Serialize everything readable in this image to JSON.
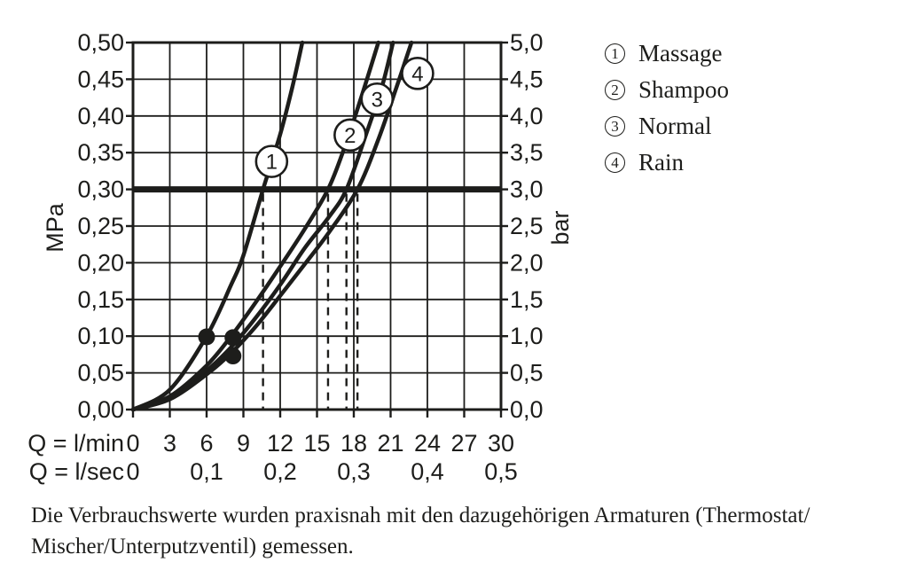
{
  "page": {
    "background": "#ffffff",
    "ink": "#1d1d1b"
  },
  "chart_data": {
    "type": "line",
    "title": "",
    "grid": true,
    "x_axis": {
      "unit_primary": "Q = l/min",
      "unit_secondary": "Q = l/sec",
      "range_lmin": [
        0,
        30
      ],
      "grid_step_lmin": 3,
      "ticks_lmin": [
        "0",
        "3",
        "6",
        "9",
        "12",
        "15",
        "18",
        "21",
        "24",
        "27",
        "30"
      ],
      "ticks_lsec": [
        {
          "q": 0,
          "label": "0"
        },
        {
          "q": 6,
          "label": "0,1"
        },
        {
          "q": 12,
          "label": "0,2"
        },
        {
          "q": 18,
          "label": "0,3"
        },
        {
          "q": 24,
          "label": "0,4"
        },
        {
          "q": 30,
          "label": "0,5"
        }
      ]
    },
    "y_axis_left": {
      "unit": "MPa",
      "range": [
        0,
        0.5
      ],
      "grid_step_mpa": 0.05,
      "ticks": [
        "0,50",
        "0,45",
        "0,40",
        "0,35",
        "0,30",
        "0,25",
        "0,20",
        "0,15",
        "0,10",
        "0,05",
        "0,00"
      ]
    },
    "y_axis_right": {
      "unit": "bar",
      "range": [
        0,
        5
      ],
      "ticks": [
        "5,0",
        "4,5",
        "4,0",
        "3,5",
        "3,0",
        "2,5",
        "2,0",
        "1,5",
        "1,0",
        "0,5",
        "0,0"
      ]
    },
    "reference_line": {
      "mpa": 0.3,
      "bar": 3.0
    },
    "series": [
      {
        "id": "1",
        "name": "Massage",
        "q_lmin_at_3bar": 10.6,
        "points_q_mpa": [
          [
            0,
            0
          ],
          [
            3,
            0.027
          ],
          [
            6,
            0.1
          ],
          [
            8,
            0.17
          ],
          [
            9,
            0.21
          ],
          [
            10.6,
            0.3
          ],
          [
            12,
            0.375
          ],
          [
            13,
            0.44
          ],
          [
            13.8,
            0.5
          ]
        ],
        "label_circle": {
          "q": 11.3,
          "mpa": 0.338
        }
      },
      {
        "id": "2",
        "name": "Shampoo",
        "q_lmin_at_3bar": 15.9,
        "points_q_mpa": [
          [
            0,
            0
          ],
          [
            3,
            0.018
          ],
          [
            6,
            0.06
          ],
          [
            8,
            0.1
          ],
          [
            10,
            0.146
          ],
          [
            12,
            0.195
          ],
          [
            14,
            0.246
          ],
          [
            15.9,
            0.3
          ],
          [
            17.2,
            0.355
          ],
          [
            18.6,
            0.425
          ],
          [
            20,
            0.5
          ]
        ],
        "label_circle": {
          "q": 17.7,
          "mpa": 0.374
        }
      },
      {
        "id": "3",
        "name": "Normal",
        "q_lmin_at_3bar": 17.4,
        "points_q_mpa": [
          [
            0,
            0
          ],
          [
            3,
            0.016
          ],
          [
            6,
            0.053
          ],
          [
            8,
            0.085
          ],
          [
            10,
            0.125
          ],
          [
            12,
            0.17
          ],
          [
            14,
            0.22
          ],
          [
            16,
            0.263
          ],
          [
            17.4,
            0.3
          ],
          [
            19,
            0.375
          ],
          [
            20.3,
            0.44
          ],
          [
            21.2,
            0.5
          ]
        ],
        "label_circle": {
          "q": 19.9,
          "mpa": 0.423
        }
      },
      {
        "id": "4",
        "name": "Rain",
        "q_lmin_at_3bar": 18.3,
        "points_q_mpa": [
          [
            0,
            0
          ],
          [
            3,
            0.014
          ],
          [
            6,
            0.048
          ],
          [
            8,
            0.077
          ],
          [
            10,
            0.113
          ],
          [
            12,
            0.155
          ],
          [
            14,
            0.198
          ],
          [
            16,
            0.242
          ],
          [
            18.3,
            0.3
          ],
          [
            20,
            0.368
          ],
          [
            21.5,
            0.44
          ],
          [
            22.7,
            0.5
          ]
        ],
        "label_circle": {
          "q": 23.2,
          "mpa": 0.458
        }
      }
    ],
    "dashed_guides_q_lmin": [
      10.6,
      15.9,
      17.4,
      18.3
    ],
    "measure_dots_q_mpa": [
      [
        6.0,
        0.099
      ],
      [
        8.15,
        0.098
      ],
      [
        8.15,
        0.073
      ]
    ]
  },
  "legend": {
    "items": [
      {
        "num": "1",
        "label": "Massage"
      },
      {
        "num": "2",
        "label": "Shampoo"
      },
      {
        "num": "3",
        "label": "Normal"
      },
      {
        "num": "4",
        "label": "Rain"
      }
    ]
  },
  "caption": {
    "line1": "Die Verbrauchswerte wurden praxisnah mit den dazugehörigen Armaturen (Thermostat/",
    "line2": "Mischer/Unterputzventil) gemessen."
  }
}
